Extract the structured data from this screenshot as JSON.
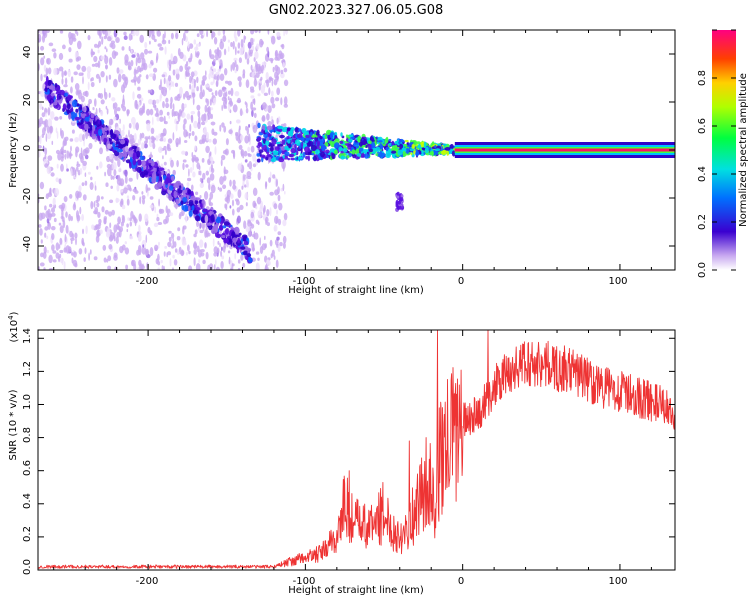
{
  "title": "GN02.2023.327.06.05.G08",
  "colors": {
    "line": "#ee3333",
    "axis": "#000000",
    "spectrogram_core": "#3a00d0",
    "spectrogram_halo": "#c8a8f0"
  },
  "chart_data": [
    {
      "type": "heatmap",
      "name": "spectrogram",
      "xlabel": "Height of straight line (km)",
      "ylabel": "Frequency (Hz)",
      "xlim": [
        -270,
        135
      ],
      "ylim": [
        -50,
        50
      ],
      "xticks": [
        -200,
        -100,
        0,
        100
      ],
      "yticks": [
        -40,
        -20,
        0,
        20,
        40
      ],
      "colorbar": {
        "label": "Normalized spectral amplitude",
        "range": [
          0.0,
          1.0
        ],
        "ticks": [
          "0.0",
          "0.2",
          "0.4",
          "0.6",
          "0.8"
        ],
        "colormap": "rainbow"
      },
      "features": [
        {
          "kind": "descending_streak",
          "x": [
            -265,
            -135
          ],
          "y": [
            26,
            -42
          ],
          "amplitude": 0.25
        },
        {
          "kind": "noise_region",
          "x": [
            -270,
            -112
          ],
          "y": [
            -50,
            50
          ],
          "amplitude": 0.08
        },
        {
          "kind": "converging_band",
          "x": [
            -130,
            -5
          ],
          "y_center": 3,
          "amplitude": 0.35
        },
        {
          "kind": "tail_blob",
          "x": [
            -42,
            -38
          ],
          "y": [
            -25,
            -18
          ],
          "amplitude": 0.2
        },
        {
          "kind": "constant_line",
          "x": [
            -5,
            135
          ],
          "y": 0,
          "amplitude": 0.95
        }
      ]
    },
    {
      "type": "line",
      "name": "snr",
      "xlabel": "Height of straight line (km)",
      "ylabel": "SNR (10 * v/v)",
      "y_scale_note": "(x10",
      "y_scale_exp": "4",
      "y_scale_close": ")",
      "xlim": [
        -270,
        135
      ],
      "ylim": [
        0,
        1.45
      ],
      "xticks": [
        -200,
        -100,
        0,
        100
      ],
      "yticks": [
        0.0,
        0.2,
        0.4,
        0.6,
        0.8,
        1.0,
        1.2,
        1.4
      ],
      "envelope_x": [
        -270,
        -120,
        -110,
        -90,
        -80,
        -75,
        -70,
        -60,
        -50,
        -45,
        -40,
        -30,
        -25,
        -20,
        -18,
        -15,
        -10,
        -5,
        0,
        10,
        20,
        30,
        40,
        50,
        60,
        70,
        80,
        90,
        100,
        110,
        120,
        130,
        135
      ],
      "envelope_y": [
        0.02,
        0.02,
        0.05,
        0.1,
        0.2,
        0.4,
        0.3,
        0.25,
        0.35,
        0.25,
        0.2,
        0.35,
        0.5,
        0.55,
        0.3,
        0.65,
        0.75,
        0.85,
        0.9,
        0.95,
        1.1,
        1.2,
        1.25,
        1.25,
        1.22,
        1.2,
        1.15,
        1.1,
        1.08,
        1.05,
        1.02,
        0.98,
        0.95
      ],
      "spikes": [
        {
          "x": -16,
          "y": 1.45
        },
        {
          "x": 16,
          "y": 1.45
        },
        {
          "x": -72,
          "y": 0.6
        },
        {
          "x": -34,
          "y": 0.78
        }
      ]
    }
  ],
  "tick_text": {
    "top_x": [
      "-200",
      "-100",
      "0",
      "100"
    ],
    "top_y": [
      "-40",
      "-20",
      "0",
      "20",
      "40"
    ],
    "cbar": [
      "0.0",
      "0.2",
      "0.4",
      "0.6",
      "0.8"
    ],
    "bot_x": [
      "-200",
      "-100",
      "0",
      "100"
    ],
    "bot_y": [
      "0.0",
      "0.2",
      "0.4",
      "0.6",
      "0.8",
      "1.0",
      "1.2",
      "1.4"
    ]
  }
}
